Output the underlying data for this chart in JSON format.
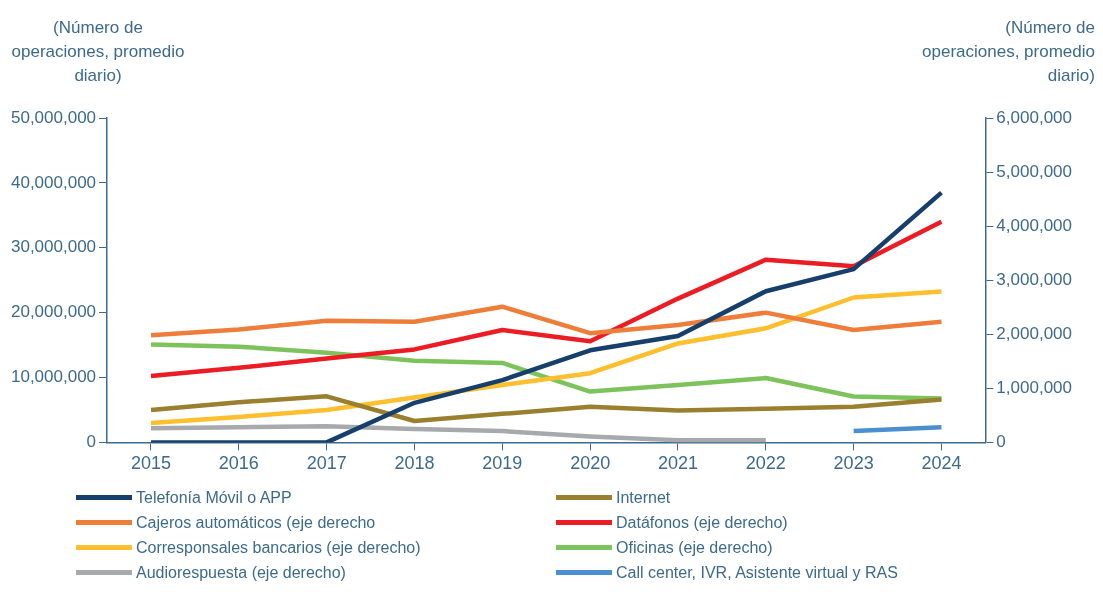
{
  "chart_data": {
    "type": "line",
    "ylabel": "(Número de operaciones, promedio diario)",
    "y2label": "(Número de operaciones, promedio diario)",
    "categories": [
      "2015",
      "2016",
      "2017",
      "2018",
      "2019",
      "2020",
      "2021",
      "2022",
      "2023",
      "2024"
    ],
    "ylim": [
      0,
      50000000
    ],
    "yticks": [
      0,
      {
        "value": 10000000,
        "label": "10,000,000"
      },
      {
        "value": 20000000,
        "label": "20,000,000"
      },
      {
        "value": 30000000,
        "label": "30,000,000"
      },
      {
        "value": 40000000,
        "label": "40,000,000"
      },
      {
        "value": 50000000,
        "label": "50,000,000"
      }
    ],
    "y2lim": [
      0,
      6000000
    ],
    "y2ticks": [
      0,
      {
        "value": 1000000,
        "label": "1,000,000"
      },
      {
        "value": 2000000,
        "label": "2,000,000"
      },
      {
        "value": 3000000,
        "label": "3,000,000"
      },
      {
        "value": 4000000,
        "label": "4,000,000"
      },
      {
        "value": 5000000,
        "label": "5,000,000"
      },
      {
        "value": 6000000,
        "label": "6,000,000"
      }
    ],
    "grid": false,
    "legend": "bottom",
    "marker": "none",
    "line_style": "solid",
    "series": [
      {
        "name": "Telefonía Móvil o APP",
        "color": "#163f6b",
        "values": [
          0,
          0,
          0,
          6100000,
          9600000,
          14200000,
          16400000,
          23300000,
          26700000,
          38500000
        ]
      },
      {
        "name": "Internet",
        "color": "#9a7f2e",
        "values": [
          5000000,
          6200000,
          7100000,
          3300000,
          4400000,
          5500000,
          4900000,
          5200000,
          5500000,
          6600000
        ]
      },
      {
        "name": "Cajeros automáticos (eje derecho",
        "color": "#ef7d3a",
        "axis": "y2",
        "values": [
          1980000,
          2090000,
          2250000,
          2230000,
          2510000,
          2020000,
          2170000,
          2400000,
          2080000,
          2230000
        ]
      },
      {
        "name": "Datáfonos (eje derecho)",
        "color": "#ec1c24",
        "axis": "y2",
        "values": [
          1230000,
          1380000,
          1550000,
          1720000,
          2080000,
          1870000,
          2660000,
          3380000,
          3260000,
          4080000
        ]
      },
      {
        "name": "Corresponsales bancarios (eje derecho)",
        "color": "#fdbf2d",
        "axis": "y2",
        "values": [
          360000,
          470000,
          600000,
          830000,
          1060000,
          1280000,
          1830000,
          2110000,
          2680000,
          2790000
        ]
      },
      {
        "name": "Oficinas (eje derecho)",
        "color": "#7dc35b",
        "axis": "y2",
        "values": [
          1810000,
          1770000,
          1660000,
          1510000,
          1470000,
          940000,
          1060000,
          1190000,
          850000,
          810000
        ]
      },
      {
        "name": "Audiorespuesta (eje derecho)",
        "color": "#a7a9ac",
        "axis": "y2",
        "values": [
          260000,
          280000,
          300000,
          250000,
          210000,
          110000,
          40000,
          40000,
          null,
          null
        ]
      },
      {
        "name": "Call center, IVR, Asistente virtual y RAS",
        "color": "#4a8fd0",
        "axis": "y2",
        "values": [
          null,
          null,
          null,
          null,
          null,
          null,
          null,
          null,
          210000,
          280000
        ]
      }
    ]
  }
}
